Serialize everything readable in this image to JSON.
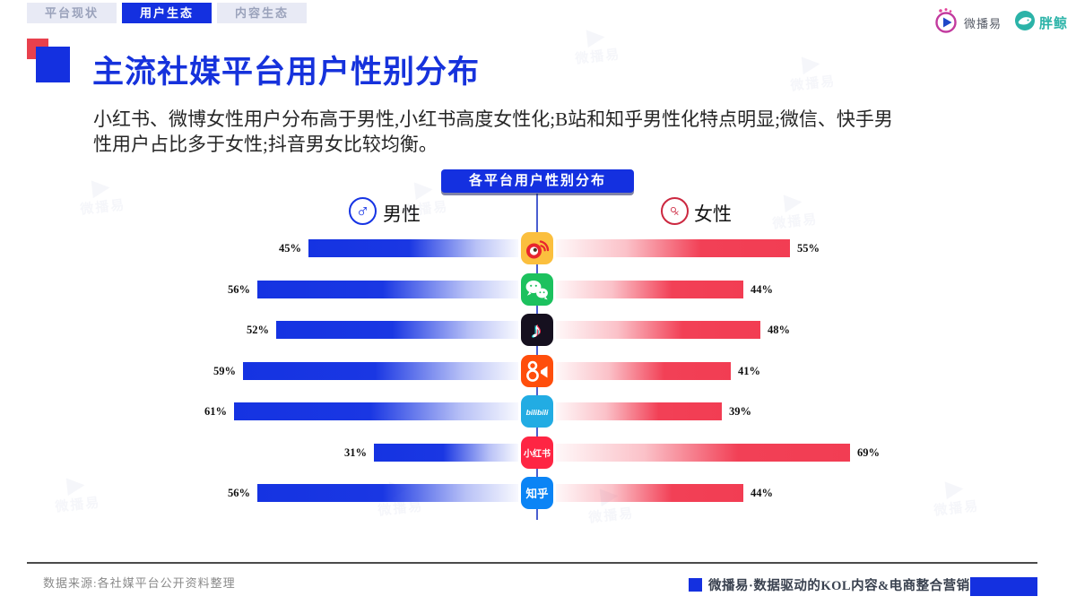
{
  "tabs": [
    {
      "label": "平台现状",
      "active": false
    },
    {
      "label": "用户生态",
      "active": true
    },
    {
      "label": "内容生态",
      "active": false
    }
  ],
  "logos": {
    "weiboyi_label": "微播易",
    "pangjing_label": "胖鲸"
  },
  "title": "主流社媒平台用户性别分布",
  "subtitle": {
    "lines": [
      "小红书、微博女性用户分布高于男性,小红书高度女性化;B站和知乎男性化特点明显;微信、快手男",
      "性用户占比多于女性;抖音男女比较均衡。"
    ]
  },
  "chart_data": {
    "type": "bar",
    "orientation": "horizontal-diverging",
    "title": "各平台用户性别分布",
    "unit": "%",
    "legend_position": "top",
    "legend": [
      {
        "label": "男性",
        "symbol": "male",
        "color": "#1533e2"
      },
      {
        "label": "女性",
        "symbol": "female",
        "color": "#f24056"
      }
    ],
    "categories": [
      "微博",
      "微信",
      "抖音",
      "快手",
      "B站",
      "小红书",
      "知乎"
    ],
    "category_icons": [
      "weibo",
      "wechat",
      "douyin",
      "kuaishou",
      "bilibili",
      "xiaohongshu",
      "zhihu"
    ],
    "series": [
      {
        "name": "男性",
        "color": "#1533e2",
        "values": [
          45,
          56,
          52,
          59,
          61,
          31,
          56
        ]
      },
      {
        "name": "女性",
        "color": "#f24056",
        "values": [
          55,
          44,
          48,
          41,
          39,
          69,
          44
        ]
      }
    ]
  },
  "footer": {
    "source": "数据来源:各社媒平台公开资料整理",
    "brand": "微播易·数据驱动的KOL内容&电商整合营销平台"
  },
  "colors": {
    "brand_blue": "#1430e0",
    "accent_red": "#e8404d",
    "male_bar": "#1533e2",
    "female_bar": "#f24056",
    "teal": "#2bb3a8"
  }
}
